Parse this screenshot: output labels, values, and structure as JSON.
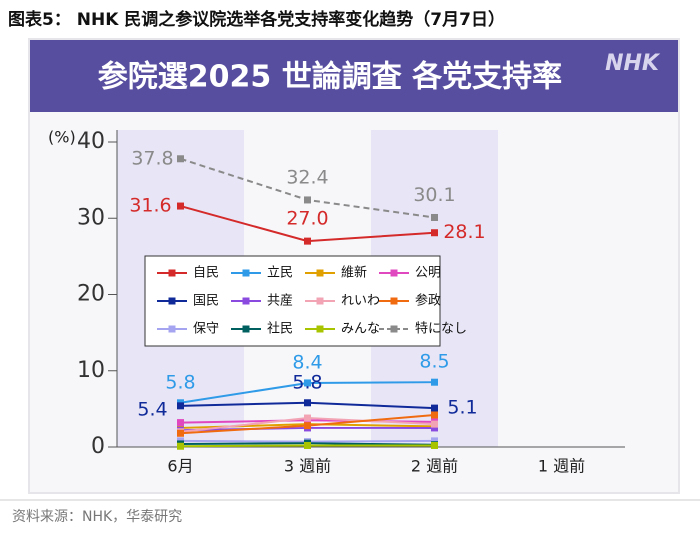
{
  "header": {
    "title": "图表5： NHK 民调之参议院选举各党支持率变化趋势（7月7日）"
  },
  "chart_data": {
    "type": "line",
    "title": "参院選2025 世論調査 各党支持率",
    "logo": "NHK",
    "ylabel": "(%)",
    "categories": [
      "6月",
      "3 週前",
      "2 週前",
      "1 週前"
    ],
    "ylim": [
      0,
      40
    ],
    "yticks": [
      0,
      10,
      20,
      30,
      40
    ],
    "series": [
      {
        "name": "自民",
        "color": "#d42a2a",
        "values": [
          31.6,
          27.0,
          28.1,
          null
        ],
        "value_labels": [
          "31.6",
          "27.0",
          "28.1",
          null
        ]
      },
      {
        "name": "立民",
        "color": "#2f9be8",
        "values": [
          5.8,
          8.4,
          8.5,
          null
        ]
      },
      {
        "name": "維新",
        "color": "#e0a000",
        "values": [
          2.5,
          3.0,
          2.7,
          null
        ]
      },
      {
        "name": "公明",
        "color": "#e048c0",
        "values": [
          3.2,
          3.5,
          3.3,
          null
        ]
      },
      {
        "name": "国民",
        "color": "#102a9a",
        "values": [
          5.4,
          5.8,
          5.1,
          null
        ]
      },
      {
        "name": "共産",
        "color": "#8a4ae0",
        "values": [
          2.2,
          2.5,
          2.5,
          null
        ]
      },
      {
        "name": "れいわ",
        "color": "#f2a4b4",
        "values": [
          2.0,
          3.8,
          3.0,
          null
        ]
      },
      {
        "name": "参政",
        "color": "#f06a10",
        "values": [
          1.8,
          2.8,
          4.2,
          null
        ]
      },
      {
        "name": "保守",
        "color": "#a4a4f0",
        "values": [
          0.8,
          0.7,
          0.8,
          null
        ]
      },
      {
        "name": "社民",
        "color": "#006060",
        "values": [
          0.4,
          0.5,
          0.3,
          null
        ]
      },
      {
        "name": "みんな",
        "color": "#a8c400",
        "values": [
          0.1,
          0.2,
          0.2,
          null
        ]
      },
      {
        "name": "特になし",
        "color": "#8a8a8a",
        "dashed": true,
        "values": [
          37.8,
          32.4,
          30.1,
          null
        ]
      }
    ]
  },
  "source": "资料来源：NHK，华泰研究"
}
